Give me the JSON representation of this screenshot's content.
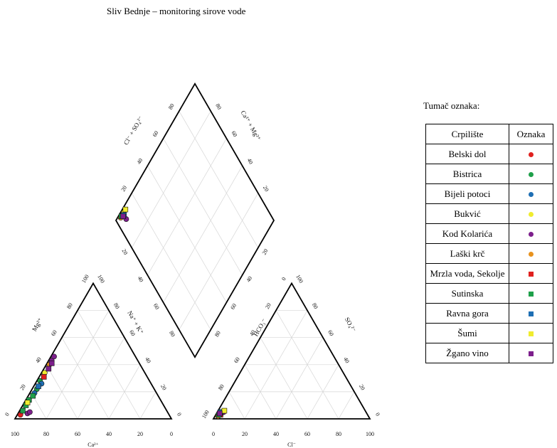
{
  "title": "Sliv Bednje – monitoring sirove vode",
  "chart_data": {
    "type": "scatter",
    "subtype": "piper-diagram",
    "title": "Sliv Bednje – monitoring sirove vode",
    "cation_triangle": {
      "axes": {
        "bottom": "Ca²⁺",
        "left": "Mg²⁺",
        "right": "Na⁺ + K⁺"
      },
      "bottom_ticks": [
        "100",
        "80",
        "60",
        "40",
        "20",
        "0"
      ],
      "left_ticks": [
        "0",
        "20",
        "40",
        "60",
        "80",
        "100"
      ],
      "right_ticks": [
        "0",
        "20",
        "40",
        "60",
        "80",
        "100"
      ],
      "grid": true
    },
    "anion_triangle": {
      "axes": {
        "bottom": "Cl⁻",
        "left": "HCO₃⁻",
        "right": "SO₄²⁻"
      },
      "bottom_ticks": [
        "0",
        "20",
        "40",
        "60",
        "80",
        "100"
      ],
      "left_ticks": [
        "100",
        "80",
        "60",
        "40",
        "20",
        "0"
      ],
      "right_ticks": [
        "0",
        "20",
        "40",
        "60",
        "80",
        "100"
      ],
      "grid": true
    },
    "diamond": {
      "axes": {
        "upper_left": "Cl⁻ + SO₄²⁻",
        "upper_right": "Ca²⁺ + Mg²⁺"
      },
      "upper_left_ticks": [
        "20",
        "40",
        "60",
        "80"
      ],
      "upper_right_ticks": [
        "80",
        "60",
        "40",
        "20"
      ],
      "lower_left_ticks": [
        "20",
        "40",
        "60",
        "80"
      ],
      "lower_right_ticks": [
        "80",
        "60",
        "40",
        "20"
      ],
      "grid": true
    },
    "series": [
      {
        "name": "Belski dol",
        "color": "#e0211f",
        "shape": "circle",
        "cation": [
          {
            "ca": 95,
            "mg": 3,
            "na": 2
          }
        ],
        "anion": [
          {
            "hco3": 95,
            "cl": 2,
            "so4": 3
          }
        ]
      },
      {
        "name": "Bistrica",
        "color": "#1fa04a",
        "shape": "circle",
        "cation": [
          {
            "ca": 75,
            "mg": 22,
            "na": 3
          },
          {
            "ca": 70,
            "mg": 28,
            "na": 2
          }
        ],
        "anion": [
          {
            "hco3": 93,
            "cl": 3,
            "so4": 4
          }
        ]
      },
      {
        "name": "Bijeli potoci",
        "color": "#1f6fb4",
        "shape": "circle",
        "cation": [
          {
            "ca": 78,
            "mg": 19,
            "na": 3
          },
          {
            "ca": 70,
            "mg": 26,
            "na": 4
          }
        ],
        "anion": [
          {
            "hco3": 94,
            "cl": 2,
            "so4": 4
          }
        ]
      },
      {
        "name": "Bukvić",
        "color": "#f0ec2e",
        "shape": "circle",
        "cation": [
          {
            "ca": 64,
            "mg": 34,
            "na": 2
          }
        ],
        "anion": [
          {
            "hco3": 92,
            "cl": 3,
            "so4": 5
          }
        ]
      },
      {
        "name": "Kod Kolarića",
        "color": "#7d1f8c",
        "shape": "circle",
        "cation": [
          {
            "ca": 90,
            "mg": 4,
            "na": 6
          },
          {
            "ca": 88,
            "mg": 5,
            "na": 7
          },
          {
            "ca": 55,
            "mg": 43,
            "na": 2
          },
          {
            "ca": 52,
            "mg": 46,
            "na": 2
          }
        ],
        "anion": [
          {
            "hco3": 93,
            "cl": 2,
            "so4": 5
          },
          {
            "hco3": 91,
            "cl": 4,
            "so4": 5
          }
        ]
      },
      {
        "name": "Laški krč",
        "color": "#e8921e",
        "shape": "circle",
        "cation": [
          {
            "ca": 58,
            "mg": 40,
            "na": 2
          }
        ],
        "anion": [
          {
            "hco3": 96,
            "cl": 2,
            "so4": 2
          }
        ]
      },
      {
        "name": "Mrzla voda, Sekolje",
        "color": "#e0211f",
        "shape": "square",
        "cation": [
          {
            "ca": 66,
            "mg": 31,
            "na": 3
          }
        ],
        "anion": [
          {
            "hco3": 94,
            "cl": 3,
            "so4": 3
          }
        ]
      },
      {
        "name": "Sutinska",
        "color": "#1fa04a",
        "shape": "square",
        "cation": [
          {
            "ca": 92,
            "mg": 6,
            "na": 2
          },
          {
            "ca": 88,
            "mg": 10,
            "na": 2
          },
          {
            "ca": 84,
            "mg": 14,
            "na": 2
          },
          {
            "ca": 80,
            "mg": 17,
            "na": 3
          }
        ],
        "anion": [
          {
            "hco3": 95,
            "cl": 2,
            "so4": 3
          }
        ]
      },
      {
        "name": "Ravna gora",
        "color": "#1f6fb4",
        "shape": "square",
        "cation": [
          {
            "ca": 73,
            "mg": 24,
            "na": 3
          }
        ],
        "anion": [
          {
            "hco3": 93,
            "cl": 2,
            "so4": 5
          }
        ]
      },
      {
        "name": "Šumi",
        "color": "#f0ec2e",
        "shape": "square",
        "cation": [
          {
            "ca": 86,
            "mg": 12,
            "na": 2
          }
        ],
        "anion": [
          {
            "hco3": 90,
            "cl": 4,
            "so4": 6
          }
        ]
      },
      {
        "name": "Žgano vino",
        "color": "#7d1f8c",
        "shape": "square",
        "cation": [
          {
            "ca": 60,
            "mg": 37,
            "na": 3
          },
          {
            "ca": 56,
            "mg": 41,
            "na": 3
          }
        ],
        "anion": [
          {
            "hco3": 94,
            "cl": 2,
            "so4": 4
          }
        ]
      }
    ]
  },
  "legend": {
    "heading": "Tumač oznaka:",
    "col_site": "Crpilište",
    "col_marker": "Oznaka"
  }
}
